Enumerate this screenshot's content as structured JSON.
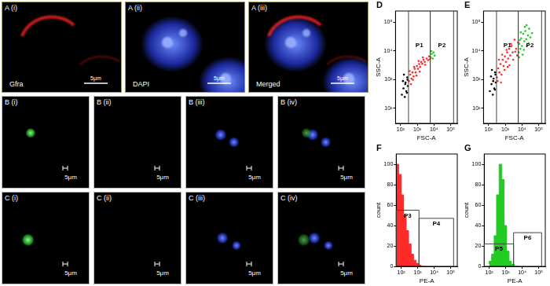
{
  "figure": {
    "rows": [
      {
        "panels": [
          {
            "label": "A (i)",
            "text": "Gfra",
            "scale_bar": "5μm",
            "colors": [
              "red"
            ]
          },
          {
            "label": "A (ii)",
            "text": "DAPI",
            "scale_bar": "5μm",
            "colors": [
              "blue"
            ]
          },
          {
            "label": "A (iii)",
            "text": "Merged",
            "scale_bar": "5μm",
            "colors": [
              "red",
              "blue"
            ]
          }
        ]
      },
      {
        "panels": [
          {
            "label": "B (i)",
            "scale_bar": "5μm",
            "colors": [
              "green"
            ]
          },
          {
            "label": "B (ii)",
            "scale_bar": "5μm",
            "colors": []
          },
          {
            "label": "B (iii)",
            "scale_bar": "5μm",
            "colors": [
              "blue"
            ]
          },
          {
            "label": "B (iv)",
            "scale_bar": "5μm",
            "colors": [
              "blue",
              "green"
            ]
          }
        ]
      },
      {
        "panels": [
          {
            "label": "C (i)",
            "scale_bar": "5μm",
            "colors": [
              "green"
            ]
          },
          {
            "label": "C (ii)",
            "scale_bar": "5μm",
            "colors": []
          },
          {
            "label": "C (iii)",
            "scale_bar": "5μm",
            "colors": [
              "blue"
            ]
          },
          {
            "label": "C (iv)",
            "scale_bar": "5μm",
            "colors": [
              "blue",
              "green"
            ]
          }
        ]
      }
    ]
  },
  "chart_data": [
    {
      "panel": "D",
      "type": "scatter",
      "xlabel": "FSC-A",
      "ylabel": "SSC-A",
      "log": true,
      "grid": false,
      "xlim": [
        50,
        250000
      ],
      "ylim": [
        30,
        250000
      ],
      "xticks": [
        {
          "value": 100,
          "label": "10²"
        },
        {
          "value": 1000,
          "label": "10³"
        },
        {
          "value": 10000,
          "label": "10⁴"
        },
        {
          "value": 100000,
          "label": "10⁵"
        }
      ],
      "yticks": [
        {
          "value": 100,
          "label": "10²"
        },
        {
          "value": 1000,
          "label": "10³"
        },
        {
          "value": 10000,
          "label": "10⁴"
        },
        {
          "value": 100000,
          "label": "10⁵"
        }
      ],
      "series": [
        {
          "color": "#000000",
          "values": [
            [
              120,
              300
            ],
            [
              150,
              500
            ],
            [
              180,
              250
            ],
            [
              200,
              800
            ],
            [
              220,
              400
            ],
            [
              250,
              1200
            ],
            [
              270,
              600
            ],
            [
              140,
              900
            ],
            [
              160,
              1500
            ],
            [
              240,
              350
            ],
            [
              190,
              700
            ],
            [
              260,
              1000
            ]
          ]
        },
        {
          "color": "#ff2a2a",
          "values": [
            [
              320,
              900
            ],
            [
              380,
              1500
            ],
            [
              450,
              1100
            ],
            [
              520,
              1800
            ],
            [
              600,
              1300
            ],
            [
              700,
              2400
            ],
            [
              800,
              1800
            ],
            [
              950,
              3000
            ],
            [
              1100,
              2400
            ],
            [
              1300,
              3500
            ],
            [
              1500,
              2800
            ],
            [
              1700,
              4200
            ],
            [
              2000,
              3600
            ],
            [
              2400,
              5000
            ],
            [
              2800,
              4200
            ],
            [
              350,
              2000
            ],
            [
              420,
              700
            ],
            [
              650,
              2800
            ],
            [
              900,
              1400
            ],
            [
              1200,
              4500
            ],
            [
              1400,
              1900
            ],
            [
              2200,
              6000
            ],
            [
              3000,
              3300
            ],
            [
              3600,
              5500
            ],
            [
              4500,
              4800
            ],
            [
              5200,
              6500
            ],
            [
              5800,
              5200
            ],
            [
              550,
              1000
            ]
          ]
        },
        {
          "color": "#22cc22",
          "values": [
            [
              6500,
              6000
            ],
            [
              7500,
              8000
            ],
            [
              8500,
              5500
            ],
            [
              9500,
              9000
            ],
            [
              11000,
              7000
            ],
            [
              7000,
              10000
            ]
          ]
        }
      ],
      "gates": [
        {
          "name": "P1",
          "x": [
            300,
            6000
          ]
        },
        {
          "name": "P2",
          "x": [
            6000,
            150000
          ]
        }
      ]
    },
    {
      "panel": "E",
      "type": "scatter",
      "xlabel": "FSC-A",
      "ylabel": "SSC-A",
      "log": true,
      "grid": false,
      "xlim": [
        50,
        250000
      ],
      "ylim": [
        30,
        250000
      ],
      "xticks": [
        {
          "value": 100,
          "label": "10²"
        },
        {
          "value": 1000,
          "label": "10³"
        },
        {
          "value": 10000,
          "label": "10⁴"
        },
        {
          "value": 100000,
          "label": "10⁵"
        }
      ],
      "yticks": [
        {
          "value": 100,
          "label": "10²"
        },
        {
          "value": 1000,
          "label": "10³"
        },
        {
          "value": 10000,
          "label": "10⁴"
        },
        {
          "value": 100000,
          "label": "10⁵"
        }
      ],
      "series": [
        {
          "color": "#000000",
          "values": [
            [
              120,
              400
            ],
            [
              150,
              700
            ],
            [
              180,
              300
            ],
            [
              200,
              1100
            ],
            [
              220,
              500
            ],
            [
              250,
              1800
            ],
            [
              270,
              800
            ],
            [
              140,
              1300
            ],
            [
              160,
              2200
            ],
            [
              240,
              450
            ],
            [
              190,
              900
            ],
            [
              260,
              1500
            ]
          ]
        },
        {
          "color": "#ff2a2a",
          "values": [
            [
              320,
              1200
            ],
            [
              380,
              2500
            ],
            [
              450,
              1800
            ],
            [
              520,
              3500
            ],
            [
              600,
              1500
            ],
            [
              700,
              5000
            ],
            [
              800,
              3000
            ],
            [
              950,
              6500
            ],
            [
              1100,
              4200
            ],
            [
              1300,
              9000
            ],
            [
              1500,
              5500
            ],
            [
              1700,
              12000
            ],
            [
              2000,
              7000
            ],
            [
              2400,
              15000
            ],
            [
              2800,
              9000
            ],
            [
              350,
              900
            ],
            [
              420,
              5000
            ],
            [
              650,
              7500
            ],
            [
              900,
              2200
            ],
            [
              1200,
              11000
            ],
            [
              1400,
              2800
            ],
            [
              2200,
              18000
            ],
            [
              3000,
              5000
            ],
            [
              3600,
              25000
            ],
            [
              4500,
              12000
            ],
            [
              5200,
              7000
            ],
            [
              5800,
              20000
            ],
            [
              550,
              800
            ],
            [
              1800,
              3200
            ],
            [
              4000,
              9500
            ]
          ]
        },
        {
          "color": "#22cc22",
          "values": [
            [
              6500,
              9000
            ],
            [
              7000,
              18000
            ],
            [
              8000,
              12000
            ],
            [
              9000,
              28000
            ],
            [
              10000,
              15000
            ],
            [
              12000,
              40000
            ],
            [
              14000,
              22000
            ],
            [
              16000,
              50000
            ],
            [
              18000,
              26000
            ],
            [
              20000,
              15000
            ],
            [
              23000,
              35000
            ],
            [
              27000,
              60000
            ],
            [
              32000,
              30000
            ],
            [
              6800,
              6000
            ],
            [
              11000,
              7500
            ],
            [
              13000,
              11000
            ],
            [
              15000,
              70000
            ],
            [
              25000,
              19000
            ],
            [
              8500,
              45000
            ],
            [
              40000,
              42000
            ],
            [
              7500,
              24000
            ],
            [
              19000,
              80000
            ]
          ]
        }
      ],
      "gates": [
        {
          "name": "P1",
          "x": [
            300,
            6000
          ]
        },
        {
          "name": "P2",
          "x": [
            6000,
            150000
          ]
        }
      ]
    },
    {
      "panel": "F",
      "type": "histogram",
      "xlabel": "PE-A",
      "ylabel": "count",
      "log": "x",
      "grid": false,
      "xlim": [
        50,
        250000
      ],
      "ylim": [
        0,
        110
      ],
      "xticks": [
        {
          "value": 100,
          "label": "10²"
        },
        {
          "value": 1000,
          "label": "10³"
        },
        {
          "value": 10000,
          "label": "10⁴"
        },
        {
          "value": 100000,
          "label": "10⁵"
        }
      ],
      "yticks": [
        0,
        20,
        40,
        60,
        80,
        100
      ],
      "bins": [
        50,
        70,
        100,
        140,
        200,
        280,
        400,
        560,
        800,
        1100,
        1600,
        2200,
        3200
      ],
      "counts": [
        95,
        100,
        90,
        70,
        50,
        35,
        22,
        12,
        6,
        3,
        1,
        0
      ],
      "color": "#ff2a2a",
      "gates": [
        {
          "name": "P3",
          "x": [
            50,
            1200
          ],
          "y": 55
        },
        {
          "name": "P4",
          "x": [
            1200,
            150000
          ],
          "y": 47
        }
      ]
    },
    {
      "panel": "G",
      "type": "histogram",
      "xlabel": "PE-A",
      "ylabel": "count",
      "log": "x",
      "grid": false,
      "xlim": [
        50,
        250000
      ],
      "ylim": [
        0,
        110
      ],
      "xticks": [
        {
          "value": 100,
          "label": "10²"
        },
        {
          "value": 1000,
          "label": "10³"
        },
        {
          "value": 10000,
          "label": "10⁴"
        },
        {
          "value": 100000,
          "label": "10⁵"
        }
      ],
      "yticks": [
        0,
        20,
        40,
        60,
        80,
        100
      ],
      "bins": [
        100,
        140,
        200,
        280,
        400,
        560,
        800,
        1100,
        1600,
        2200,
        3200,
        4500,
        6400
      ],
      "counts": [
        2,
        5,
        12,
        30,
        70,
        100,
        85,
        40,
        15,
        5,
        2,
        0
      ],
      "color": "#22cc22",
      "gates": [
        {
          "name": "P5",
          "x": [
            50,
            3000
          ],
          "y": 22
        },
        {
          "name": "P6",
          "x": [
            3000,
            150000
          ],
          "y": 33
        }
      ]
    }
  ]
}
